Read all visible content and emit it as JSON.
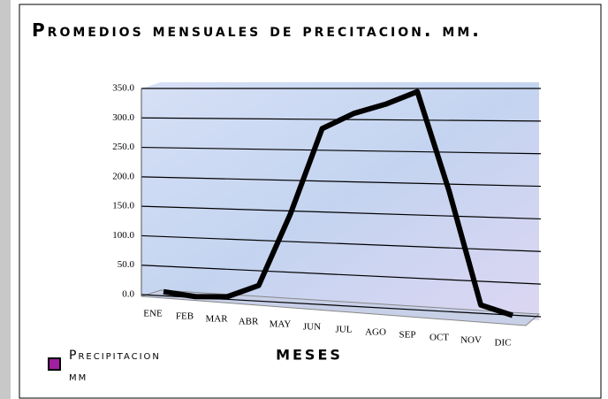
{
  "chart_data": {
    "type": "line",
    "title": "Promedios mensuales de precitacion. mm.",
    "x_label": "MESES",
    "categories": [
      "ENE",
      "FEB",
      "MAR",
      "ABR",
      "MAY",
      "JUN",
      "JUL",
      "AGO",
      "SEP",
      "OCT",
      "NOV",
      "DIC"
    ],
    "series": [
      {
        "name": "Precipitacion mm",
        "color": "#a020a0",
        "line_color": "#000000",
        "values": [
          5,
          0,
          3,
          25,
          145,
          285,
          310,
          325,
          345,
          190,
          15,
          2
        ]
      }
    ],
    "ylim": [
      0,
      350
    ],
    "yticks": [
      {
        "value": 0,
        "label": "0.0"
      },
      {
        "value": 50,
        "label": "50.0"
      },
      {
        "value": 100,
        "label": "100.0"
      },
      {
        "value": 150,
        "label": "150.0"
      },
      {
        "value": 200,
        "label": "200.0"
      },
      {
        "value": 250,
        "label": "250.0"
      },
      {
        "value": 300,
        "label": "300.0"
      },
      {
        "value": 350,
        "label": "350.0"
      }
    ],
    "grid": true,
    "legend": "bottom-left"
  }
}
